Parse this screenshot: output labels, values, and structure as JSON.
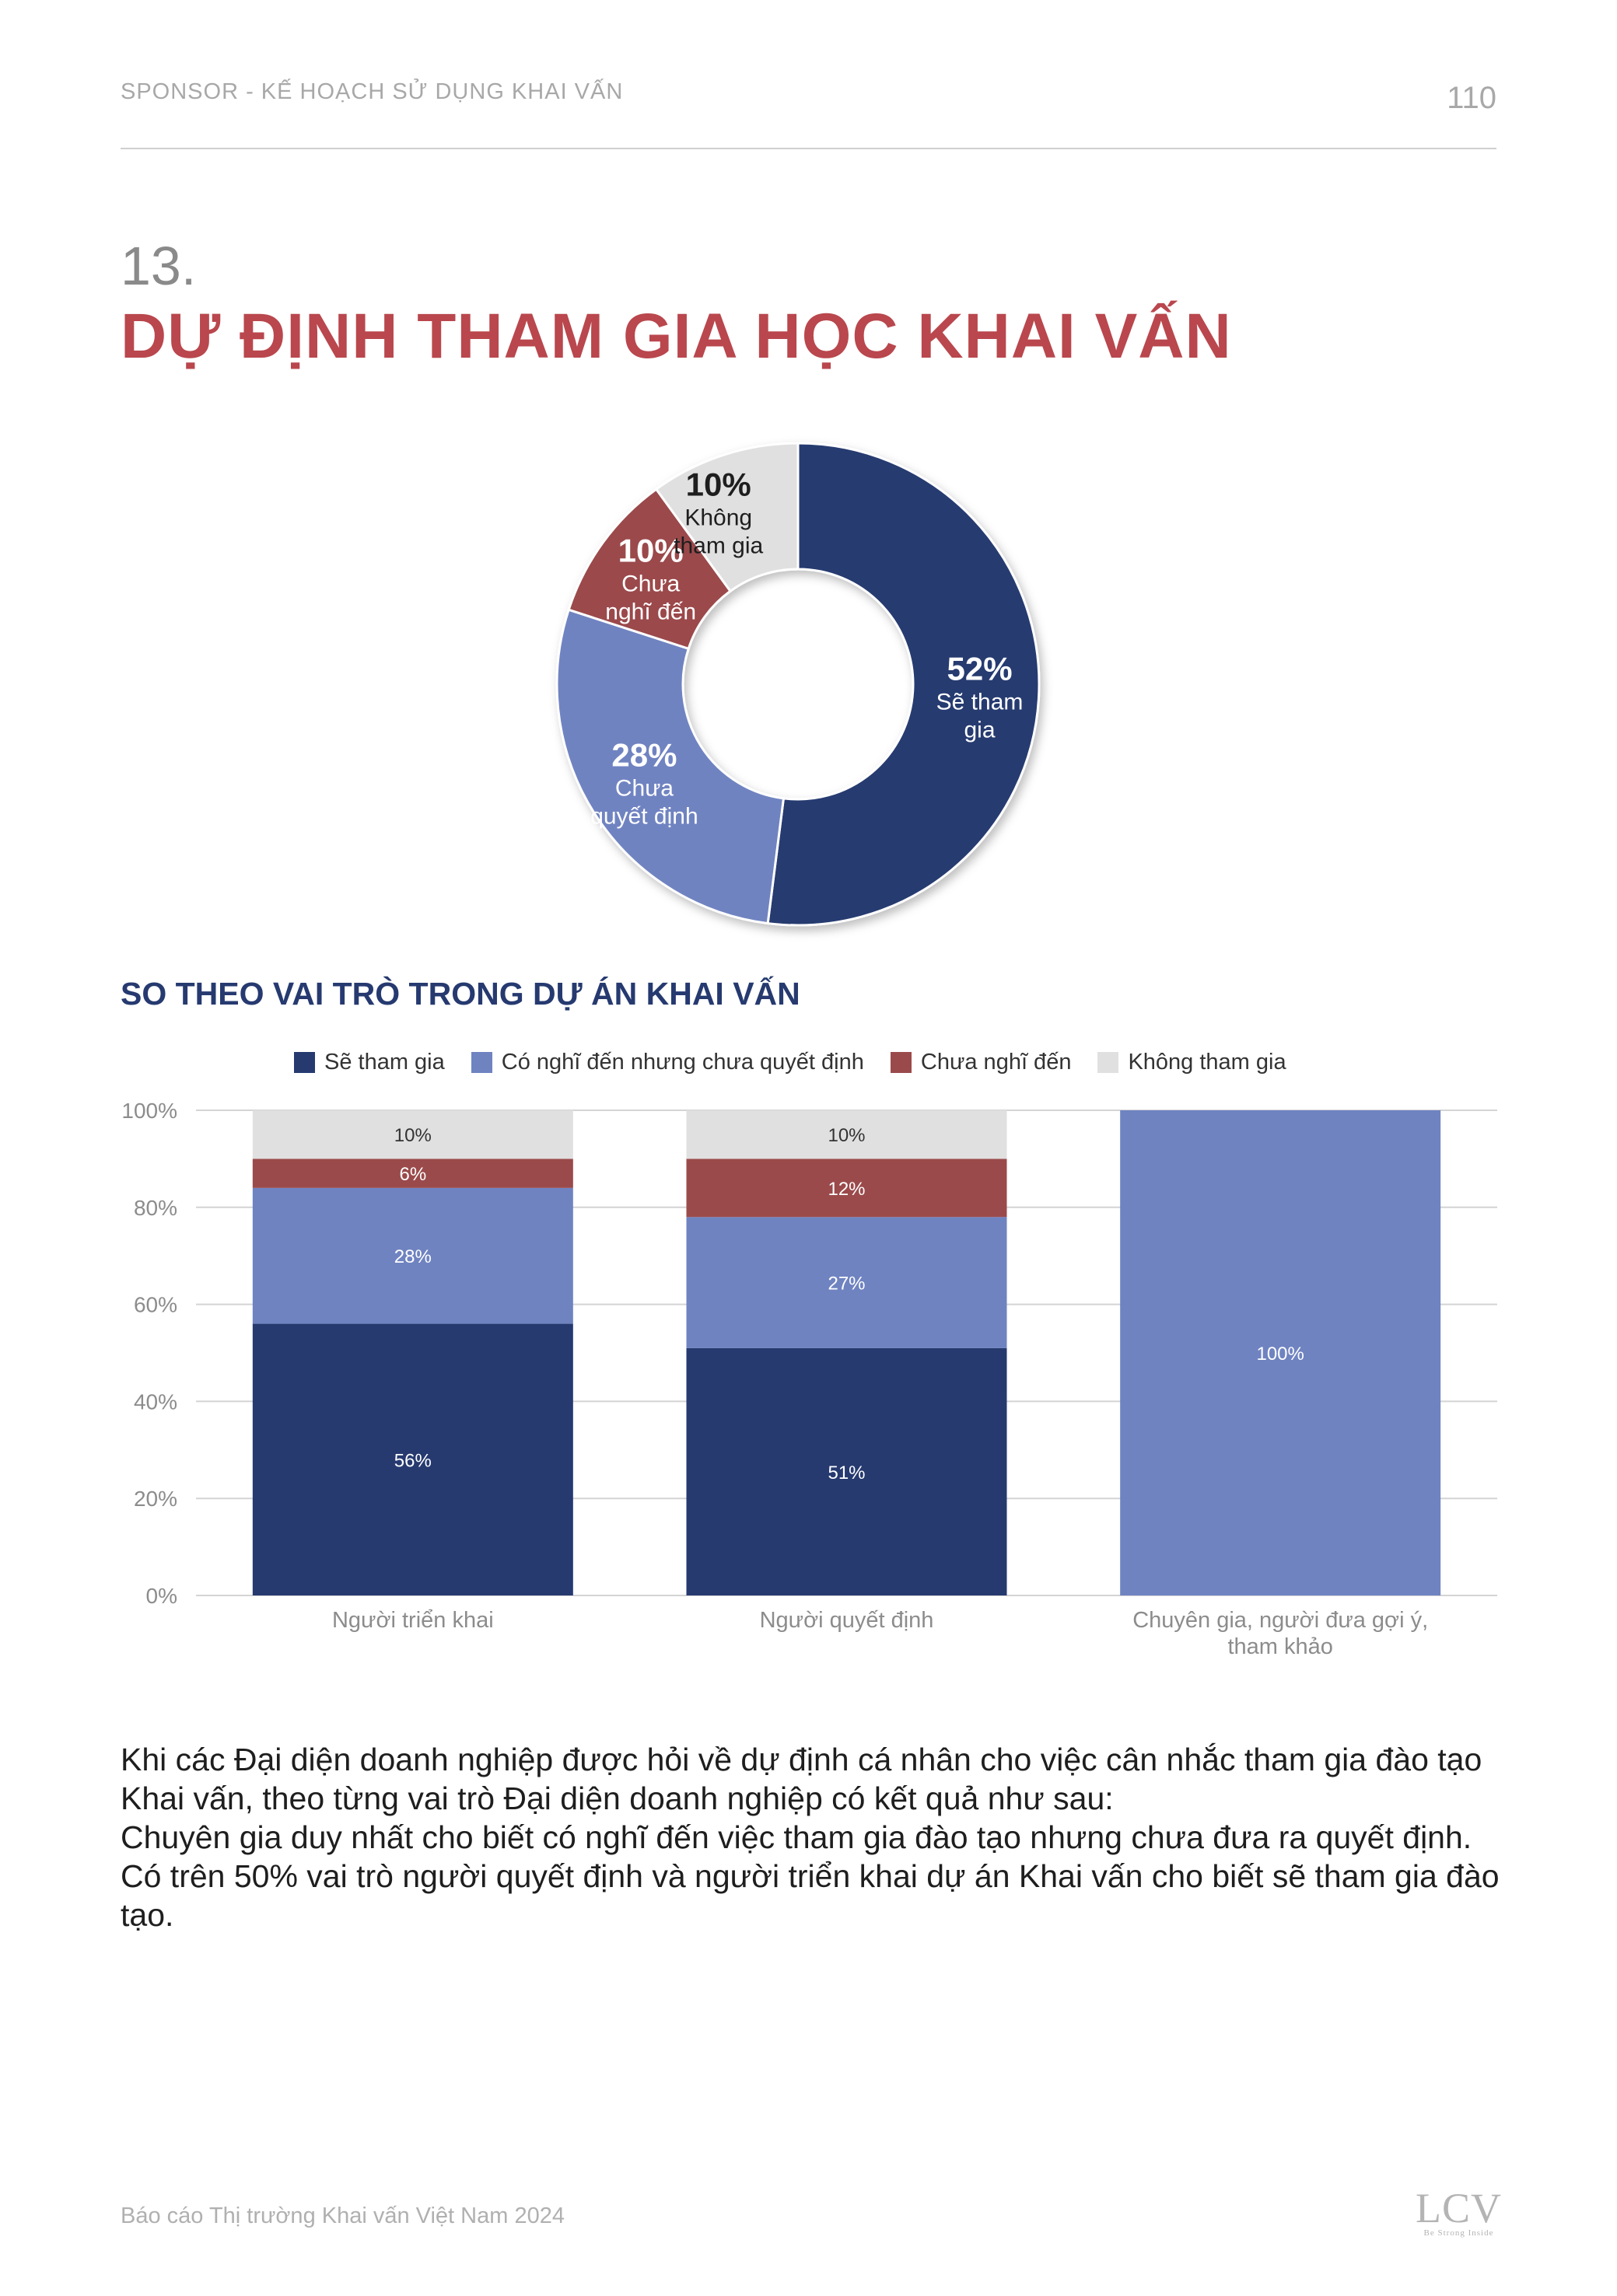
{
  "header": {
    "left_text": "SPONSOR - KẾ HOẠCH SỬ DỤNG KHAI VẤN",
    "page_number": "110"
  },
  "section": {
    "number": "13.",
    "title": "DỰ ĐỊNH THAM GIA HỌC KHAI VẤN"
  },
  "chart_data": [
    {
      "type": "pie",
      "variant": "donut",
      "slices": [
        {
          "name": "Sẽ tham gia",
          "label_lines": [
            "Sẽ tham",
            "gia"
          ],
          "pct_label": "52%",
          "value": 52,
          "color": "#263a70"
        },
        {
          "name": "Chưa quyết định",
          "label_lines": [
            "Chưa",
            "quyết định"
          ],
          "pct_label": "28%",
          "value": 28,
          "color": "#6f83c1"
        },
        {
          "name": "Chưa nghĩ đến",
          "label_lines": [
            "Chưa",
            "nghĩ đến"
          ],
          "pct_label": "10%",
          "value": 10,
          "color": "#9b4a4b"
        },
        {
          "name": "Không tham gia",
          "label_lines": [
            "Không",
            "tham gia"
          ],
          "pct_label": "10%",
          "value": 10,
          "color": "#e0e0e0"
        }
      ]
    },
    {
      "type": "bar",
      "stacked": true,
      "title": "SO THEO VAI TRÒ TRONG DỰ ÁN KHAI VẤN",
      "categories": [
        "Người triển khai",
        "Người quyết định",
        "Chuyên gia, người đưa gợi ý, tham khảo"
      ],
      "category_label_lines": [
        [
          "Người triển khai"
        ],
        [
          "Người quyết định"
        ],
        [
          "Chuyên gia, người đưa gợi ý,",
          "tham khảo"
        ]
      ],
      "series": [
        {
          "name": "Sẽ tham gia",
          "color": "#263a70",
          "values": [
            56,
            51,
            0
          ],
          "labels": [
            "56%",
            "51%",
            ""
          ]
        },
        {
          "name": "Có nghĩ đến nhưng chưa quyết định",
          "color": "#6f83c1",
          "values": [
            28,
            27,
            100
          ],
          "labels": [
            "28%",
            "27%",
            "100%"
          ]
        },
        {
          "name": "Chưa nghĩ đến",
          "color": "#9b4a4b",
          "values": [
            6,
            12,
            0
          ],
          "labels": [
            "6%",
            "12%",
            ""
          ]
        },
        {
          "name": "Không tham gia",
          "color": "#e0e0e0",
          "values": [
            10,
            10,
            0
          ],
          "labels": [
            "10%",
            "10%",
            ""
          ]
        }
      ],
      "yticks": [
        "0%",
        "20%",
        "40%",
        "60%",
        "80%",
        "100%"
      ],
      "ylim": [
        0,
        100
      ],
      "legend": "top",
      "grid": true
    }
  ],
  "body": {
    "paragraphs": [
      "Khi các Đại diện doanh nghiệp được hỏi về dự định cá nhân cho việc cân nhắc tham gia đào tạo Khai vấn, theo từng vai trò Đại diện doanh nghiệp có kết quả như sau:",
      "Chuyên gia duy nhất cho biết có nghĩ đến việc tham gia đào tạo nhưng chưa đưa ra quyết định.",
      "Có trên 50% vai trò người quyết định và người triển khai dự án Khai vấn cho biết sẽ tham gia đào tạo."
    ]
  },
  "footer": {
    "text": "Báo cáo Thị trường Khai vấn Việt Nam 2024",
    "logo_text": "LCV",
    "logo_tagline": "Be Strong Inside"
  }
}
